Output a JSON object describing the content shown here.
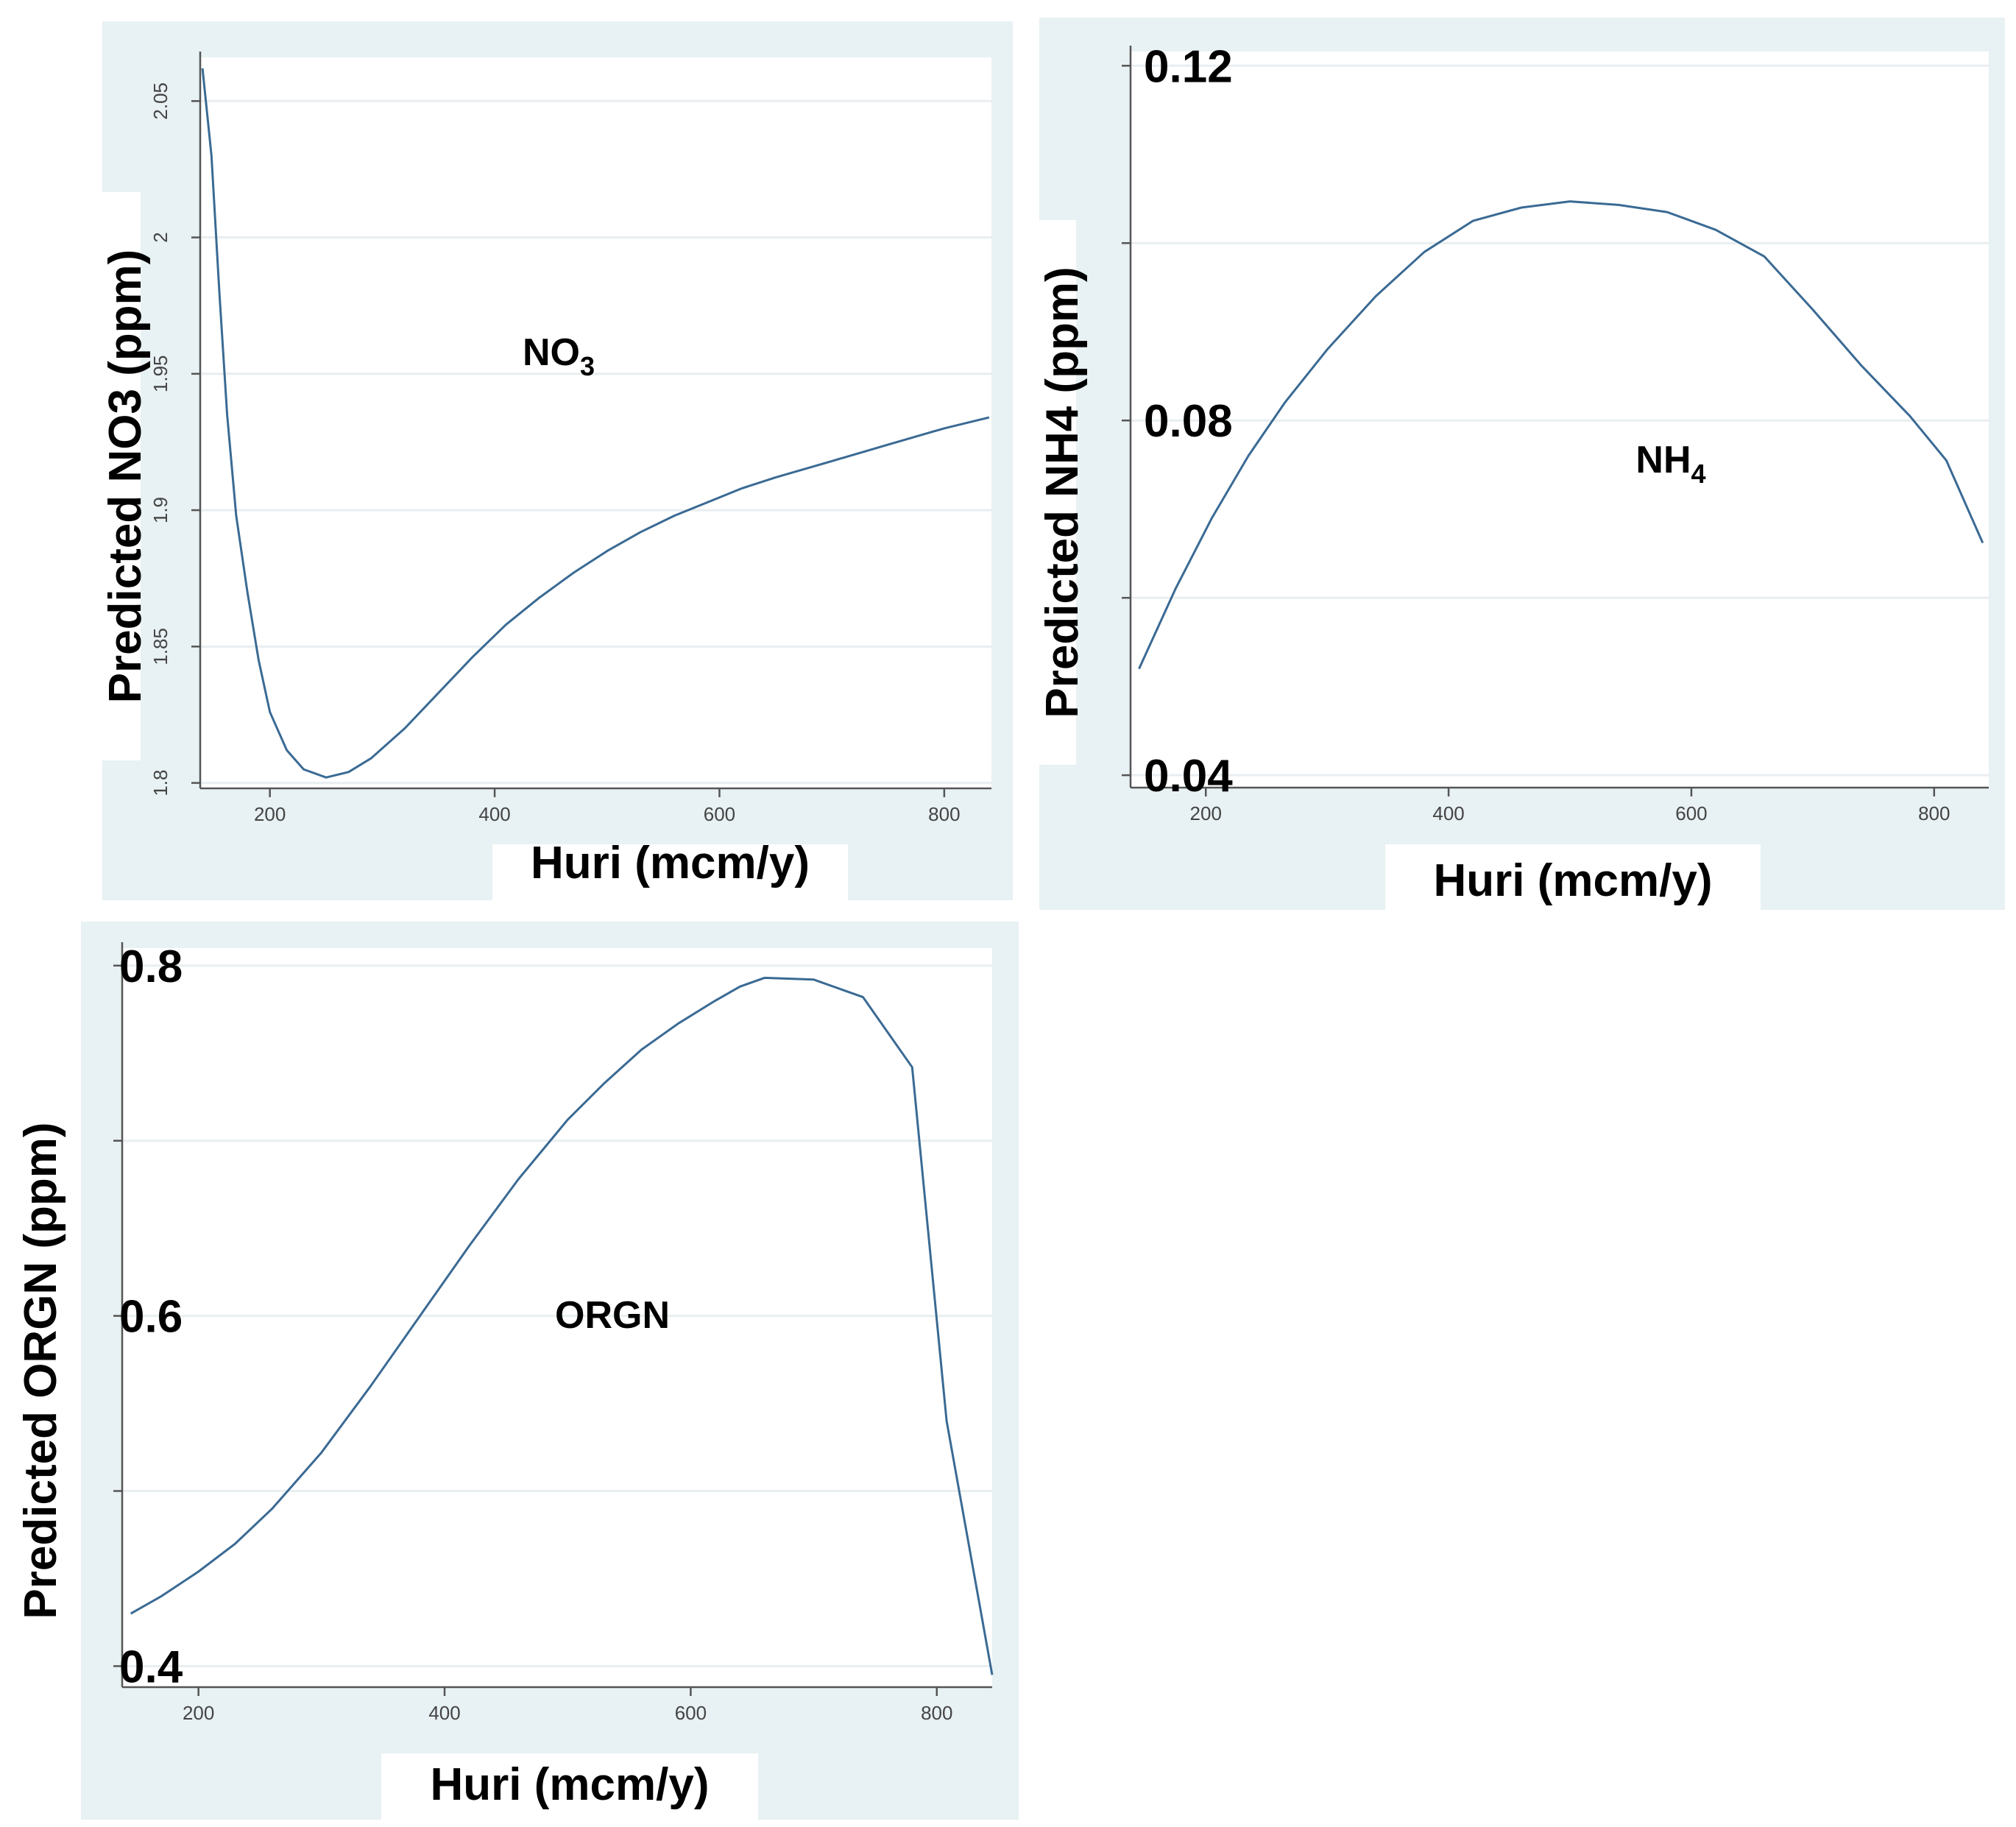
{
  "chart_data": [
    {
      "id": "no3",
      "type": "line",
      "xlabel": "Huri (mcm/y)",
      "ylabel": "Predicted NO3 (ppm)",
      "annotation": {
        "text": "NO",
        "sub": "3"
      },
      "xlim": [
        138,
        842
      ],
      "ylim": [
        1.798,
        2.066
      ],
      "xticks": [
        200,
        400,
        600,
        800
      ],
      "xtick_labels": [
        "200",
        "400",
        "600",
        "800"
      ],
      "yticks": [
        1.8,
        1.85,
        1.9,
        1.95,
        2,
        2.05
      ],
      "ytick_labels": [
        "1.8",
        "1.85",
        "1.9",
        "1.95",
        "2",
        "2.05"
      ],
      "grid": true,
      "series": [
        {
          "name": "Predicted NO3",
          "x": [
            140,
            148,
            155,
            162,
            170,
            180,
            190,
            200,
            215,
            230,
            250,
            270,
            290,
            320,
            350,
            380,
            410,
            440,
            470,
            500,
            530,
            560,
            590,
            620,
            650,
            700,
            750,
            800,
            840
          ],
          "y": [
            2.062,
            2.03,
            1.98,
            1.935,
            1.898,
            1.87,
            1.845,
            1.826,
            1.812,
            1.805,
            1.802,
            1.804,
            1.809,
            1.82,
            1.833,
            1.846,
            1.858,
            1.868,
            1.877,
            1.885,
            1.892,
            1.898,
            1.903,
            1.908,
            1.912,
            1.918,
            1.924,
            1.93,
            1.934
          ]
        }
      ]
    },
    {
      "id": "nh4",
      "type": "line",
      "xlabel": "Huri (mcm/y)",
      "ylabel": "Predicted NH4 (ppm)",
      "annotation": {
        "text": "NH",
        "sub": "4"
      },
      "xlim": [
        138,
        845
      ],
      "ylim": [
        0.0386,
        0.1216
      ],
      "xticks": [
        200,
        400,
        600,
        800
      ],
      "xtick_labels": [
        "200",
        "400",
        "600",
        "800"
      ],
      "yticks": [
        0.04,
        0.08,
        0.12
      ],
      "ytick_labels": [
        "0.04",
        "0.08",
        "0.12"
      ],
      "minor_yticks": [
        0.06,
        0.1
      ],
      "grid": true,
      "series": [
        {
          "name": "Predicted NH4",
          "x": [
            145,
            175,
            205,
            235,
            265,
            300,
            340,
            380,
            420,
            460,
            500,
            540,
            580,
            620,
            660,
            700,
            740,
            780,
            810,
            840
          ],
          "y": [
            0.052,
            0.061,
            0.069,
            0.076,
            0.082,
            0.088,
            0.094,
            0.099,
            0.1025,
            0.104,
            0.1047,
            0.1043,
            0.1035,
            0.1015,
            0.0985,
            0.0925,
            0.0862,
            0.0805,
            0.0755,
            0.0662
          ]
        }
      ]
    },
    {
      "id": "orgn",
      "type": "line",
      "xlabel": "Huri (mcm/y)",
      "ylabel": "Predicted ORGN (ppm)",
      "annotation": {
        "text": "ORGN",
        "sub": ""
      },
      "xlim": [
        138,
        845
      ],
      "ylim": [
        0.388,
        0.81
      ],
      "xticks": [
        200,
        400,
        600,
        800
      ],
      "xtick_labels": [
        "200",
        "400",
        "600",
        "800"
      ],
      "yticks": [
        0.4,
        0.6,
        0.8
      ],
      "ytick_labels": [
        "0.4",
        "0.6",
        "0.8"
      ],
      "minor_yticks": [
        0.5,
        0.7
      ],
      "grid": true,
      "series": [
        {
          "name": "Predicted ORGN",
          "x": [
            145,
            170,
            200,
            230,
            260,
            300,
            340,
            380,
            420,
            460,
            500,
            530,
            560,
            590,
            620,
            640,
            660,
            700,
            740,
            780,
            808,
            845
          ],
          "y": [
            0.43,
            0.44,
            0.454,
            0.47,
            0.49,
            0.522,
            0.56,
            0.6,
            0.64,
            0.678,
            0.712,
            0.733,
            0.752,
            0.767,
            0.78,
            0.788,
            0.793,
            0.792,
            0.782,
            0.742,
            0.54,
            0.395
          ]
        }
      ]
    }
  ]
}
